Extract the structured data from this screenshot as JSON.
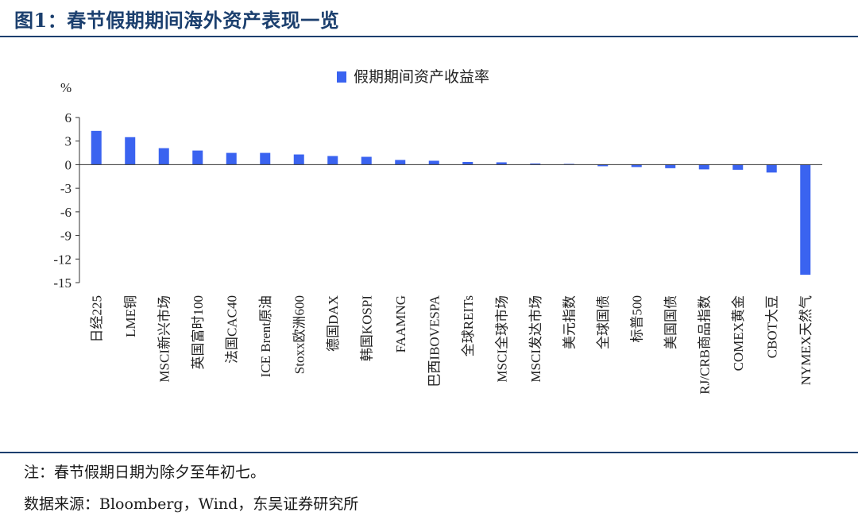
{
  "header": {
    "title": "图1：春节假期期间海外资产表现一览"
  },
  "footer": {
    "note": "注：春节假期日期为除夕至年初七。",
    "source": "数据来源：Bloomberg，Wind，东吴证券研究所"
  },
  "chart_data": {
    "type": "bar",
    "title": "",
    "ylabel": "%",
    "xlabel": "",
    "ylim": [
      -15,
      6
    ],
    "yticks": [
      6,
      3,
      0,
      -3,
      -6,
      -9,
      -12,
      -15
    ],
    "legend": {
      "position": "top-center"
    },
    "grid": false,
    "colors": {
      "bar": "#3a63f0"
    },
    "categories": [
      "日经225",
      "LME铜",
      "MSCI新兴市场",
      "英国富时100",
      "法国CAC40",
      "ICE Brent原油",
      "Stoxx欧洲600",
      "德国DAX",
      "韩国KOSPI",
      "FAAMNG",
      "巴西IBOVESPA",
      "全球REITs",
      "MSCI全球市场",
      "MSCI发达市场",
      "美元指数",
      "全球国债",
      "标普500",
      "美国国债",
      "RJ/CRB商品指数",
      "COMEX黄金",
      "CBOT大豆",
      "NYMEX天然气"
    ],
    "series": [
      {
        "name": "假期期间资产收益率",
        "values": [
          4.3,
          3.5,
          2.1,
          1.8,
          1.5,
          1.5,
          1.3,
          1.1,
          1.0,
          0.6,
          0.5,
          0.35,
          0.3,
          0.15,
          0.1,
          -0.2,
          -0.3,
          -0.45,
          -0.6,
          -0.65,
          -1.0,
          -14.0
        ]
      }
    ]
  }
}
